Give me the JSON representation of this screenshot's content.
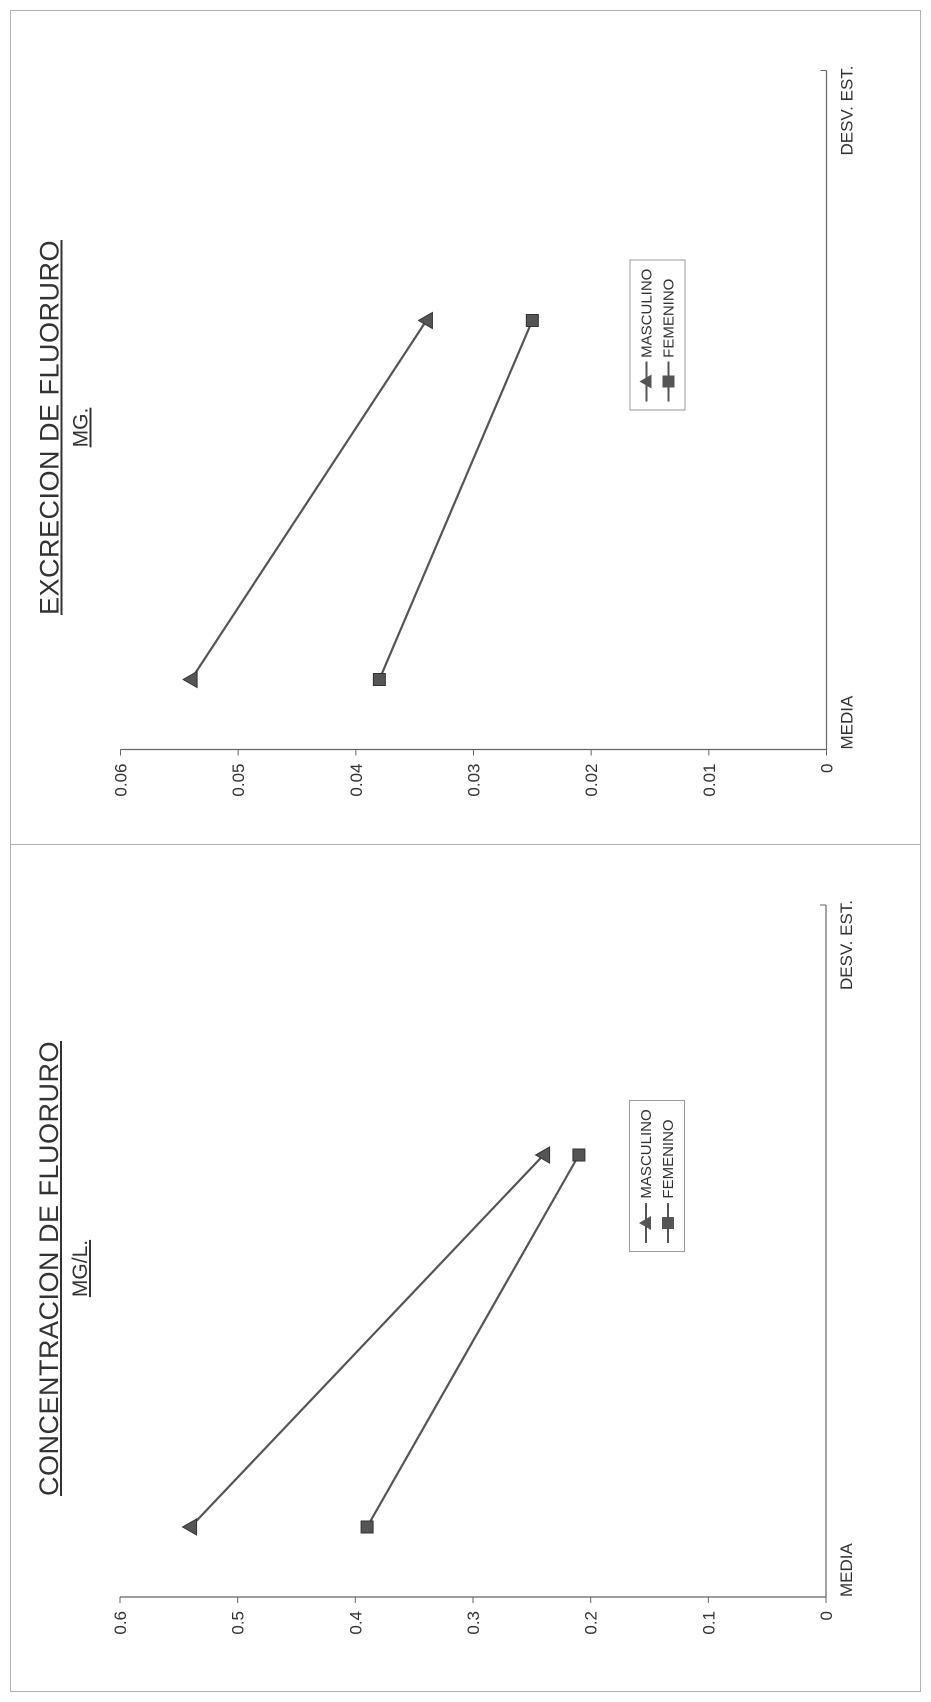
{
  "charts": [
    {
      "title": "CONCENTRACION DE FLUORURO",
      "subtitle": "MG/L.",
      "legend": {
        "masculino": "MASCULINO",
        "femenino": "FEMENINO"
      }
    },
    {
      "title": "EXCRECION DE FLUORURO",
      "subtitle": "MG.",
      "legend": {
        "masculino": "MASCULINO",
        "femenino": "FEMENINO"
      }
    }
  ],
  "chart_data": [
    {
      "type": "line",
      "title": "CONCENTRACION DE FLUORURO",
      "subtitle": "MG/L.",
      "categories": [
        "MEDIA",
        "DESV. EST."
      ],
      "ylim": [
        0,
        0.6
      ],
      "yticks": [
        "0",
        "0.1",
        "0.2",
        "0.3",
        "0.4",
        "0.5",
        "0.6"
      ],
      "grid": false,
      "legend_position": "center",
      "series": [
        {
          "name": "MASCULINO",
          "marker": "triangle",
          "values": [
            0.54,
            0.24
          ]
        },
        {
          "name": "FEMENINO",
          "marker": "square",
          "values": [
            0.39,
            0.21
          ]
        }
      ],
      "colors": {
        "line": "#555555",
        "axis": "#666666"
      }
    },
    {
      "type": "line",
      "title": "EXCRECION DE FLUORURO",
      "subtitle": "MG.",
      "categories": [
        "MEDIA",
        "DESV. EST."
      ],
      "ylim": [
        0,
        0.06
      ],
      "yticks": [
        "0",
        "0.01",
        "0.02",
        "0.03",
        "0.04",
        "0.05",
        "0.06"
      ],
      "grid": false,
      "legend_position": "center",
      "series": [
        {
          "name": "MASCULINO",
          "marker": "triangle",
          "values": [
            0.054,
            0.034
          ]
        },
        {
          "name": "FEMENINO",
          "marker": "square",
          "values": [
            0.038,
            0.025
          ]
        }
      ],
      "colors": {
        "line": "#555555",
        "axis": "#666666"
      }
    }
  ]
}
